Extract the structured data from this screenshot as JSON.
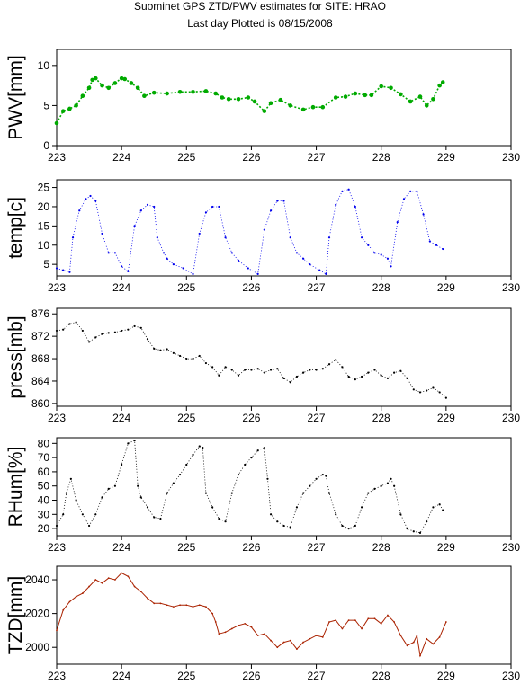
{
  "header": {
    "title": "Suominet GPS ZTD/PWV estimates for SITE: HRAO",
    "subtitle": "Last day Plotted is 08/15/2008"
  },
  "chart_data": [
    {
      "type": "scatter",
      "ylabel": "PWV[mm]",
      "color": "#00aa00",
      "marker": "dot",
      "xlim": [
        223,
        230
      ],
      "ylim": [
        0,
        12
      ],
      "xticks": [
        "223",
        "224",
        "225",
        "226",
        "227",
        "228",
        "229",
        "230"
      ],
      "yticks": [
        "0",
        "5",
        "10"
      ],
      "ytick_values": [
        0,
        5,
        10
      ],
      "x": [
        223.0,
        223.1,
        223.2,
        223.3,
        223.4,
        223.5,
        223.55,
        223.6,
        223.7,
        223.8,
        223.9,
        224.0,
        224.05,
        224.15,
        224.25,
        224.35,
        224.5,
        224.7,
        224.9,
        225.1,
        225.3,
        225.45,
        225.55,
        225.65,
        225.8,
        225.95,
        226.05,
        226.2,
        226.3,
        226.45,
        226.6,
        226.8,
        226.95,
        227.1,
        227.3,
        227.45,
        227.6,
        227.75,
        227.85,
        228.0,
        228.15,
        228.3,
        228.45,
        228.6,
        228.7,
        228.8,
        228.9,
        228.95
      ],
      "y": [
        2.8,
        4.3,
        4.6,
        5.0,
        6.2,
        7.2,
        8.2,
        8.4,
        7.5,
        7.2,
        7.8,
        8.4,
        8.3,
        7.8,
        7.2,
        6.2,
        6.6,
        6.5,
        6.7,
        6.7,
        6.8,
        6.5,
        6.0,
        5.8,
        5.8,
        6.0,
        5.5,
        4.3,
        5.3,
        5.7,
        5.0,
        4.5,
        4.8,
        4.8,
        6.0,
        6.1,
        6.5,
        6.3,
        6.3,
        7.4,
        7.2,
        6.4,
        5.5,
        6.1,
        5.0,
        5.8,
        7.5,
        7.9
      ]
    },
    {
      "type": "scatter",
      "ylabel": "temp[c]",
      "color": "#0000ee",
      "marker": "dot",
      "xlim": [
        223,
        230
      ],
      "ylim": [
        2,
        27
      ],
      "xticks": [
        "223",
        "224",
        "225",
        "226",
        "227",
        "228",
        "229",
        "230"
      ],
      "yticks": [
        "5",
        "10",
        "15",
        "20",
        "25"
      ],
      "ytick_values": [
        5,
        10,
        15,
        20,
        25
      ],
      "x": [
        223.0,
        223.1,
        223.2,
        223.25,
        223.35,
        223.45,
        223.52,
        223.6,
        223.7,
        223.8,
        223.9,
        224.0,
        224.1,
        224.2,
        224.3,
        224.4,
        224.5,
        224.55,
        224.65,
        224.7,
        224.8,
        224.95,
        225.1,
        225.2,
        225.3,
        225.4,
        225.5,
        225.6,
        225.7,
        225.8,
        225.95,
        226.1,
        226.2,
        226.3,
        226.4,
        226.5,
        226.6,
        226.7,
        226.8,
        226.9,
        227.05,
        227.15,
        227.2,
        227.3,
        227.4,
        227.5,
        227.6,
        227.7,
        227.8,
        227.9,
        228.0,
        228.1,
        228.15,
        228.25,
        228.35,
        228.45,
        228.55,
        228.65,
        228.75,
        228.85,
        228.95
      ],
      "y": [
        4.0,
        3.5,
        3.0,
        12.0,
        19.0,
        22.0,
        22.8,
        21.5,
        13.0,
        8.0,
        8.0,
        4.5,
        3.2,
        15.0,
        19.0,
        20.5,
        20.0,
        12.0,
        8.0,
        6.5,
        5.0,
        4.0,
        2.5,
        13.0,
        18.5,
        20.0,
        20.0,
        12.0,
        8.0,
        6.0,
        4.0,
        2.5,
        14.0,
        19.0,
        21.5,
        21.5,
        12.0,
        8.0,
        6.5,
        5.0,
        3.5,
        2.5,
        12.0,
        20.5,
        24.0,
        24.5,
        20.0,
        12.0,
        10.0,
        8.0,
        7.5,
        6.5,
        4.5,
        16.0,
        22.0,
        24.0,
        24.0,
        18.0,
        11.0,
        10.0,
        9.0
      ]
    },
    {
      "type": "scatter",
      "ylabel": "press[mb]",
      "color": "#000000",
      "marker": "dot",
      "xlim": [
        223,
        230
      ],
      "ylim": [
        859.5,
        877
      ],
      "xticks": [
        "223",
        "224",
        "225",
        "226",
        "227",
        "228",
        "229",
        "230"
      ],
      "yticks": [
        "860",
        "864",
        "868",
        "872",
        "876"
      ],
      "ytick_values": [
        860,
        864,
        868,
        872,
        876
      ],
      "x": [
        223.0,
        223.1,
        223.2,
        223.3,
        223.4,
        223.5,
        223.6,
        223.7,
        223.8,
        223.9,
        224.0,
        224.1,
        224.2,
        224.3,
        224.4,
        224.5,
        224.6,
        224.7,
        224.8,
        224.9,
        225.0,
        225.1,
        225.2,
        225.3,
        225.4,
        225.5,
        225.6,
        225.7,
        225.8,
        225.9,
        226.0,
        226.1,
        226.2,
        226.3,
        226.4,
        226.5,
        226.6,
        226.7,
        226.8,
        226.9,
        227.0,
        227.1,
        227.2,
        227.3,
        227.4,
        227.5,
        227.6,
        227.7,
        227.8,
        227.9,
        228.0,
        228.1,
        228.2,
        228.3,
        228.4,
        228.5,
        228.6,
        228.7,
        228.8,
        228.9,
        229.0
      ],
      "y": [
        873.0,
        873.2,
        874.2,
        874.5,
        873.0,
        871.0,
        871.8,
        872.4,
        872.6,
        872.7,
        873.0,
        873.2,
        873.8,
        873.5,
        871.5,
        869.8,
        869.5,
        869.7,
        869.0,
        868.5,
        868.0,
        868.0,
        868.5,
        867.2,
        866.5,
        865.0,
        866.5,
        866.0,
        865.0,
        866.0,
        866.0,
        866.2,
        865.5,
        866.0,
        866.2,
        864.5,
        863.8,
        864.8,
        865.5,
        866.0,
        866.0,
        866.2,
        867.0,
        867.8,
        866.5,
        864.8,
        864.3,
        864.8,
        865.5,
        866.0,
        865.0,
        864.5,
        865.5,
        865.8,
        864.5,
        862.5,
        862.0,
        862.3,
        862.8,
        862.0,
        861.0
      ]
    },
    {
      "type": "scatter",
      "ylabel": "RHum[%]",
      "color": "#000000",
      "marker": "dot",
      "xlim": [
        223,
        230
      ],
      "ylim": [
        15,
        84
      ],
      "xticks": [
        "223",
        "224",
        "225",
        "226",
        "227",
        "228",
        "229",
        "230"
      ],
      "yticks": [
        "20",
        "30",
        "40",
        "50",
        "60",
        "70",
        "80"
      ],
      "ytick_values": [
        20,
        30,
        40,
        50,
        60,
        70,
        80
      ],
      "x": [
        223.0,
        223.1,
        223.15,
        223.22,
        223.3,
        223.4,
        223.5,
        223.6,
        223.7,
        223.8,
        223.9,
        224.0,
        224.1,
        224.2,
        224.25,
        224.3,
        224.4,
        224.5,
        224.6,
        224.7,
        224.8,
        224.9,
        225.0,
        225.1,
        225.2,
        225.25,
        225.3,
        225.4,
        225.5,
        225.6,
        225.7,
        225.8,
        225.9,
        226.0,
        226.1,
        226.2,
        226.25,
        226.3,
        226.4,
        226.5,
        226.6,
        226.7,
        226.8,
        226.9,
        227.0,
        227.1,
        227.15,
        227.2,
        227.3,
        227.4,
        227.5,
        227.6,
        227.7,
        227.8,
        227.9,
        228.0,
        228.1,
        228.15,
        228.2,
        228.3,
        228.4,
        228.5,
        228.6,
        228.7,
        228.8,
        228.9,
        228.95
      ],
      "y": [
        22.0,
        30.0,
        45.0,
        55.0,
        40.0,
        30.0,
        22.0,
        30.0,
        42.0,
        48.0,
        50.0,
        65.0,
        80.0,
        82.0,
        50.0,
        42.0,
        35.0,
        28.0,
        27.0,
        45.0,
        52.0,
        58.0,
        65.0,
        72.0,
        78.0,
        77.0,
        45.0,
        35.0,
        27.0,
        25.0,
        45.0,
        58.0,
        65.0,
        70.0,
        75.0,
        77.0,
        55.0,
        30.0,
        25.0,
        22.0,
        21.0,
        35.0,
        45.0,
        50.0,
        55.0,
        58.0,
        57.0,
        45.0,
        30.0,
        22.0,
        20.0,
        22.0,
        35.0,
        45.0,
        48.0,
        50.0,
        52.0,
        55.0,
        50.0,
        30.0,
        20.0,
        18.0,
        17.0,
        25.0,
        35.0,
        37.0,
        33.0
      ]
    },
    {
      "type": "line",
      "ylabel": "TZD[mm]",
      "color": "#aa2200",
      "xlim": [
        223,
        230
      ],
      "ylim": [
        1990,
        2048
      ],
      "xticks": [
        "223",
        "224",
        "225",
        "226",
        "227",
        "228",
        "229",
        "230"
      ],
      "yticks": [
        "2000",
        "2020",
        "2040"
      ],
      "ytick_values": [
        2000,
        2020,
        2040
      ],
      "x": [
        223.0,
        223.1,
        223.2,
        223.3,
        223.4,
        223.5,
        223.6,
        223.7,
        223.8,
        223.9,
        224.0,
        224.1,
        224.2,
        224.3,
        224.4,
        224.5,
        224.6,
        224.7,
        224.8,
        224.9,
        225.0,
        225.1,
        225.2,
        225.3,
        225.4,
        225.45,
        225.5,
        225.6,
        225.7,
        225.8,
        225.9,
        226.0,
        226.1,
        226.2,
        226.3,
        226.4,
        226.5,
        226.6,
        226.7,
        226.8,
        226.9,
        227.0,
        227.1,
        227.2,
        227.3,
        227.4,
        227.5,
        227.6,
        227.7,
        227.8,
        227.9,
        228.0,
        228.1,
        228.2,
        228.3,
        228.4,
        228.5,
        228.55,
        228.6,
        228.7,
        228.8,
        228.9,
        229.0
      ],
      "y": [
        2010.0,
        2022.0,
        2027.0,
        2030.0,
        2032.0,
        2036.0,
        2040.0,
        2038.0,
        2041.0,
        2040.0,
        2044.0,
        2042.0,
        2036.0,
        2033.0,
        2029.0,
        2026.0,
        2026.0,
        2025.0,
        2024.0,
        2025.0,
        2025.0,
        2024.0,
        2025.0,
        2024.0,
        2020.0,
        2015.0,
        2008.0,
        2009.0,
        2011.0,
        2013.0,
        2014.0,
        2012.0,
        2007.0,
        2008.0,
        2004.0,
        2000.0,
        2003.0,
        2004.0,
        1999.0,
        2003.0,
        2005.0,
        2007.0,
        2006.0,
        2015.0,
        2016.0,
        2011.0,
        2016.0,
        2016.0,
        2011.0,
        2017.0,
        2017.0,
        2014.0,
        2019.0,
        2015.0,
        2007.0,
        2001.0,
        2003.0,
        2007.0,
        1995.0,
        2005.0,
        2002.0,
        2006.0,
        2015.0
      ]
    }
  ]
}
